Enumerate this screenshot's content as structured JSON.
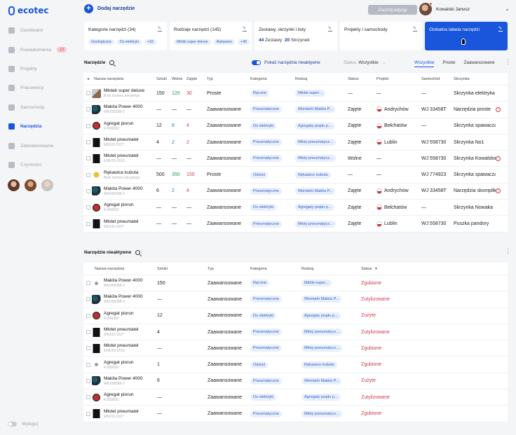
{
  "app": {
    "logo": "ecotec"
  },
  "sidebar": {
    "items": [
      {
        "label": "Dashboard"
      },
      {
        "label": "Powiadomienia",
        "badge": "12"
      },
      {
        "label": "Projekty"
      },
      {
        "label": "Pracownicy"
      },
      {
        "label": "Samochody"
      },
      {
        "label": "Narzędzia",
        "active": true
      },
      {
        "label": "Zakwaterowanie"
      },
      {
        "label": "Czynności"
      }
    ],
    "logout": "Wyloguj"
  },
  "topbar": {
    "add_label": "Dodaj narzędzie",
    "edit_label": "Zacznij edycję",
    "user_name": "Kowalski Janusz"
  },
  "cards": [
    {
      "title": "Kategorie narzędzi (34)",
      "tags": [
        "Geologiczne",
        "Do elektryki",
        "+15"
      ]
    },
    {
      "title": "Rodzaje narzędzi (145)",
      "tags": [
        "Młotki super deluxe",
        "Rękawice",
        "+45"
      ]
    },
    {
      "title": "Zestawy, skrzynki i listy",
      "count1": "44",
      "label1": "Zestawy",
      "count2": "20",
      "label2": "Skrzynek"
    },
    {
      "title": "Projekty i samochody"
    },
    {
      "title": "Globalna tabela narzędzi"
    }
  ],
  "active_section": {
    "title": "Narzędzie",
    "toggle_label": "Pokaż narzędzia nieaktywne",
    "status_label": "Status:",
    "status_value": "Wszystkie",
    "tabs": [
      "Wszystkie",
      "Proste",
      "Zaawansowane"
    ],
    "columns": [
      "Nazwa narzędzia",
      "Sztuki",
      "Wolne",
      "Zajęte",
      "Typ",
      "Kategoria",
      "Rodzaj",
      "Status",
      "Projekt",
      "Samochód",
      "Skrzynka"
    ],
    "rows": [
      {
        "name": "Młotek super deluxe",
        "serial": "Brak numeru seryjnego",
        "qty": "150",
        "free": "120",
        "taken": "30",
        "type": "Proste",
        "category": "Ręczne",
        "kind": "Młotki super...",
        "status": "—",
        "project": "—",
        "car": "—",
        "box": "Skrzynka elektryka",
        "thumb": "ham",
        "warn": false
      },
      {
        "name": "Makita Power 4000",
        "serial": "WKX58398-3",
        "qty": "—",
        "free": "—",
        "taken": "—",
        "type": "Zaawansowane",
        "category": "Pneumatyczne",
        "kind": "Wiertarki Makita P...",
        "status": "Zajęte",
        "project": "Andrychów",
        "car": "WJ 33458T",
        "box": "Narzędzia proste",
        "thumb": "drill",
        "warn": true
      },
      {
        "name": "Agregat piorun",
        "serial": "K-830002",
        "qty": "12",
        "free": "8",
        "taken": "4",
        "type": "Zaawansowane",
        "category": "Do elektryki",
        "kind": "Agregaty prądu p...",
        "status": "Zajęte",
        "project": "Bełchatów",
        "car": "—",
        "box": "Skrzynka spawacza",
        "thumb": "gen",
        "warn": false
      },
      {
        "name": "Młotel pneumatel",
        "serial": "EBU33-1927",
        "qty": "4",
        "free": "2",
        "taken": "2",
        "type": "Zaawansowane",
        "category": "Pneumatyczne",
        "kind": "Młoty pneumatycz...",
        "status": "Zajęte",
        "project": "Lublin",
        "car": "WJ 558730",
        "box": "Skrzynka No1",
        "thumb": "hammer",
        "warn": false
      },
      {
        "name": "Młotel pneumatel",
        "serial": "EWU33-2015",
        "qty": "—",
        "free": "—",
        "taken": "—",
        "type": "Zaawansowane",
        "category": "Pneumatyczne",
        "kind": "Młoty pneumatycz...",
        "status": "Wolne",
        "project": "—",
        "car": "WJ 558730",
        "box": "Skrzynka Kowalskie...",
        "thumb": "hammer",
        "warn": true
      },
      {
        "name": "Rękawice kubota",
        "serial": "Brak numeru seryjnego",
        "qty": "500",
        "free": "350",
        "taken": "150",
        "type": "Proste",
        "category": "Odzież",
        "kind": "Rękawice kubota",
        "status": "—",
        "project": "—",
        "car": "WJ 774923",
        "box": "Skrzynka spawacza",
        "thumb": "glove",
        "warn": false
      },
      {
        "name": "Makita Power 4000",
        "serial": "WKX58398-3",
        "qty": "6",
        "free": "2",
        "taken": "4",
        "type": "Zaawansowane",
        "category": "Pneumatyczne",
        "kind": "Wiertarki Makita P...",
        "status": "Zajęte",
        "project": "Andrychów",
        "car": "WJ 33458T",
        "box": "Narzędzia skomplik...",
        "thumb": "drill",
        "warn": true
      },
      {
        "name": "Agregat piorun",
        "serial": "K-830002",
        "qty": "—",
        "free": "—",
        "taken": "—",
        "type": "Zaawansowane",
        "category": "Do elektryki",
        "kind": "Agregaty prądu p...",
        "status": "Zajęte",
        "project": "Bełchatów",
        "car": "—",
        "box": "Skrzynka Nowaka",
        "thumb": "gen",
        "warn": false
      },
      {
        "name": "Młotel pneumatel",
        "serial": "EBU33-1927",
        "qty": "—",
        "free": "—",
        "taken": "—",
        "type": "Zaawansowane",
        "category": "Pneumatyczne",
        "kind": "Młoty pneumatycz...",
        "status": "Zajęte",
        "project": "Lublin",
        "car": "WJ 558730",
        "box": "Puszka pandory",
        "thumb": "hammer",
        "warn": false
      }
    ]
  },
  "inactive_section": {
    "title": "Narzędzie nieaktywne",
    "columns": [
      "Nazwa narzędzia",
      "Sztuki",
      "Typ",
      "Kategoria",
      "Rodzaj",
      "Status"
    ],
    "rows": [
      {
        "name": "Makita Power 4000",
        "serial": "WKX58398-3",
        "qty": "150",
        "type": "Zaawansowane",
        "category": "Ręczne",
        "kind": "Młotki super...",
        "status": "Zgubione",
        "thumb": "wrench"
      },
      {
        "name": "Makita Power 4000",
        "serial": "WKX58398-3",
        "qty": "—",
        "type": "Zaawansowane",
        "category": "Pneumatyczne",
        "kind": "Wiertarki Makita P...",
        "status": "Zutylizowane",
        "thumb": "drill"
      },
      {
        "name": "Agregat piorun",
        "serial": "K-830002",
        "qty": "12",
        "type": "Zaawansowane",
        "category": "Do elektryki",
        "kind": "Agregaty prądu p...",
        "status": "Zużyte",
        "thumb": "gen"
      },
      {
        "name": "Młotel pneumatel",
        "serial": "EBU33-1927",
        "qty": "4",
        "type": "Zaawansowane",
        "category": "Pneumatyczne",
        "kind": "Młoty pneumatycz...",
        "status": "Zutylizowane",
        "thumb": "hammer"
      },
      {
        "name": "Młotel pneumatel",
        "serial": "EWU33-2015",
        "qty": "—",
        "type": "Zaawansowane",
        "category": "Pneumatyczne",
        "kind": "Młoty pneumatycz...",
        "status": "Zgubione",
        "thumb": "hammer"
      },
      {
        "name": "Agregat piorun",
        "serial": "K-830002",
        "qty": "1",
        "type": "Zaawansowane",
        "category": "Odzież",
        "kind": "Rękawice kubota",
        "status": "Zgubione",
        "thumb": "wrench"
      },
      {
        "name": "Makita Power 4000",
        "serial": "WKX58398-3",
        "qty": "6",
        "type": "Zaawansowane",
        "category": "Pneumatyczne",
        "kind": "Wiertarki Makita P...",
        "status": "Zużyte",
        "thumb": "drill"
      },
      {
        "name": "Agregat piorun",
        "serial": "K-830002",
        "qty": "—",
        "type": "Zaawansowane",
        "category": "Do elektryki",
        "kind": "Agregaty prądu p...",
        "status": "Zutylizowane",
        "thumb": "gen"
      },
      {
        "name": "Młotel pneumatel",
        "serial": "EBU33-1927",
        "qty": "—",
        "type": "Zaawansowane",
        "category": "Pneumatyczne",
        "kind": "Młoty pneumatycz...",
        "status": "Zgubione",
        "thumb": "hammer"
      }
    ]
  }
}
